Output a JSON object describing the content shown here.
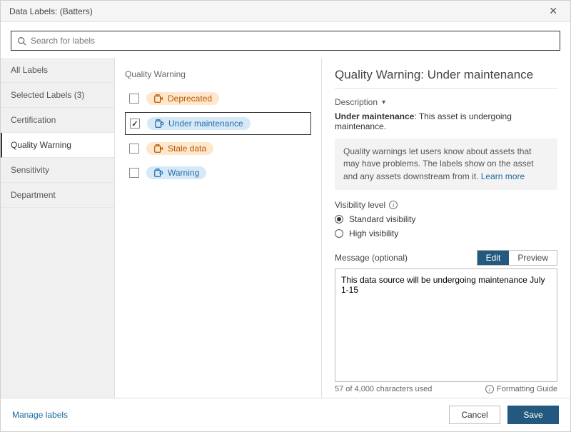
{
  "header": {
    "title": "Data Labels: (Batters)"
  },
  "search": {
    "placeholder": "Search for labels"
  },
  "sidebar": {
    "items": [
      {
        "label": "All Labels"
      },
      {
        "label": "Selected Labels (3)"
      },
      {
        "label": "Certification"
      },
      {
        "label": "Quality Warning"
      },
      {
        "label": "Sensitivity"
      },
      {
        "label": "Department"
      }
    ],
    "active_index": 3
  },
  "labels_panel": {
    "heading": "Quality Warning",
    "items": [
      {
        "label": "Deprecated",
        "color": "orange",
        "checked": false
      },
      {
        "label": "Under maintenance",
        "color": "blue",
        "checked": true
      },
      {
        "label": "Stale data",
        "color": "orange",
        "checked": false
      },
      {
        "label": "Warning",
        "color": "blue",
        "checked": false
      }
    ]
  },
  "details": {
    "title": "Quality Warning: Under maintenance",
    "description_label": "Description",
    "description_term": "Under maintenance",
    "description_body": ": This asset is undergoing maintenance.",
    "info_text": "Quality warnings let users know about assets that may have problems. The labels show on the asset and any assets downstream from it. ",
    "learn_more": "Learn more",
    "visibility_label": "Visibility level",
    "visibility_options": [
      "Standard visibility",
      "High visibility"
    ],
    "visibility_selected": 0,
    "message_label": "Message (optional)",
    "tabs": {
      "edit": "Edit",
      "preview": "Preview",
      "active": "edit"
    },
    "message_value": "This data source will be undergoing maintenance July 1-15",
    "char_count": "57 of 4,000 characters used",
    "formatting_guide": "Formatting Guide"
  },
  "footer": {
    "manage": "Manage labels",
    "cancel": "Cancel",
    "save": "Save"
  },
  "colors": {
    "primary": "#24597f",
    "link": "#1a699e",
    "pill_orange_bg": "#ffe6cc",
    "pill_orange_fg": "#b55b00",
    "pill_blue_bg": "#d6e9f8",
    "pill_blue_fg": "#2b6ea8"
  }
}
